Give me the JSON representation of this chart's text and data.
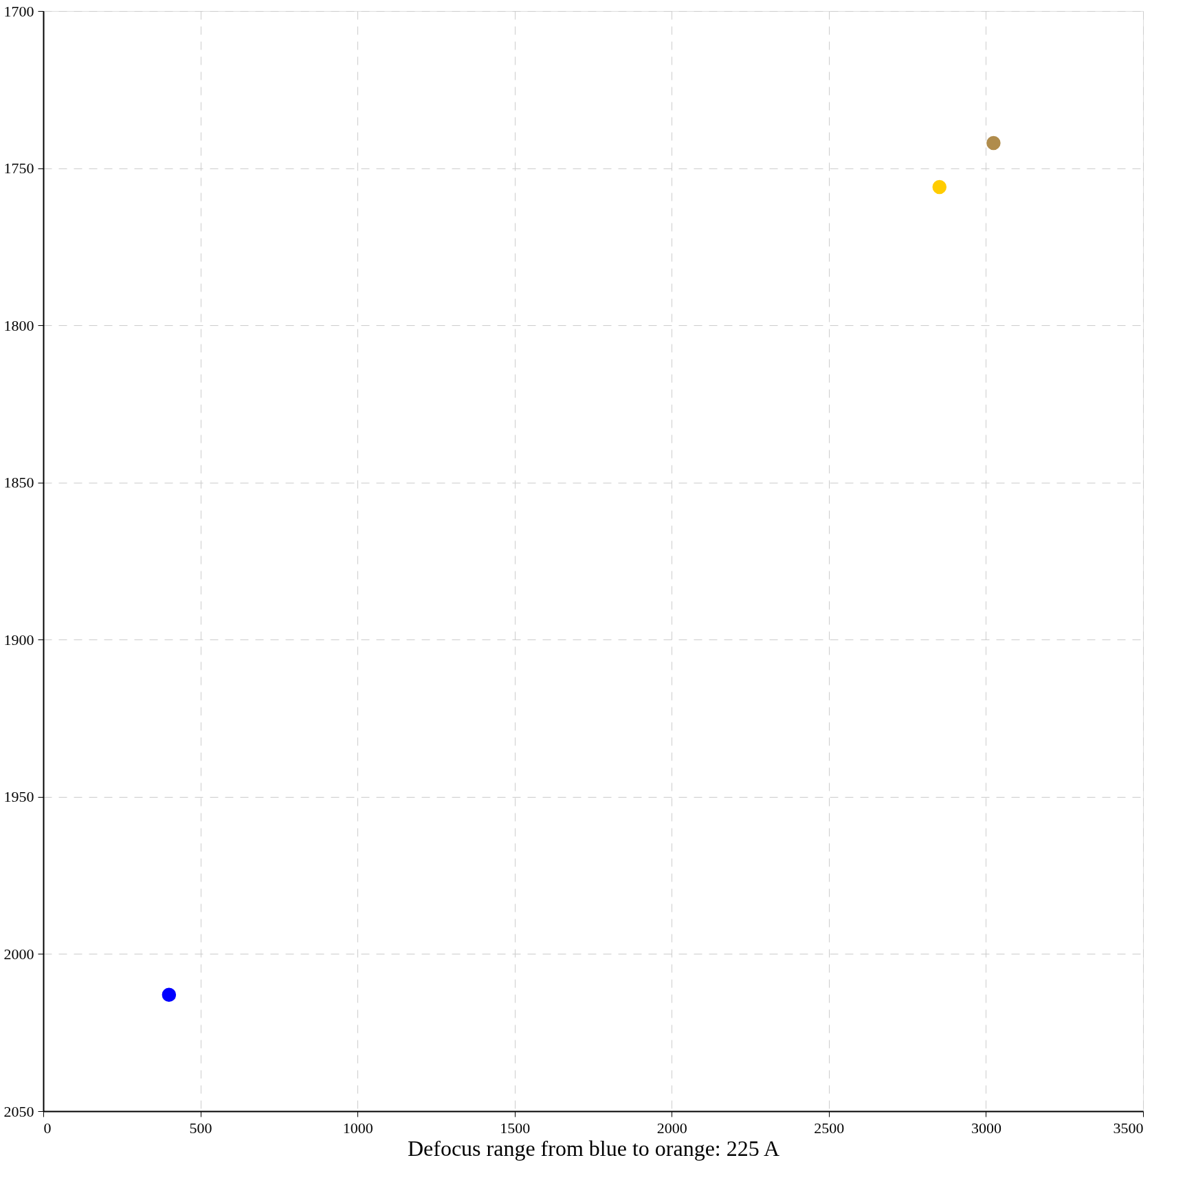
{
  "chart_data": {
    "type": "scatter",
    "xlabel": "Defocus range from blue to orange: 225 A",
    "x": [
      400,
      2852,
      3024
    ],
    "values": [
      2013,
      1756,
      1742
    ],
    "colors": [
      "#0000ff",
      "#ffcc00",
      "#b08c4c"
    ],
    "xlim": [
      0,
      3500
    ],
    "xticks": [
      0,
      500,
      1000,
      1500,
      2000,
      2500,
      3000,
      3500
    ],
    "ylim": [
      2050,
      1700
    ],
    "yticks": [
      1700,
      1750,
      1800,
      1850,
      1900,
      1950,
      2000,
      2050
    ],
    "grid": true,
    "marker": "circle",
    "legend": false
  }
}
